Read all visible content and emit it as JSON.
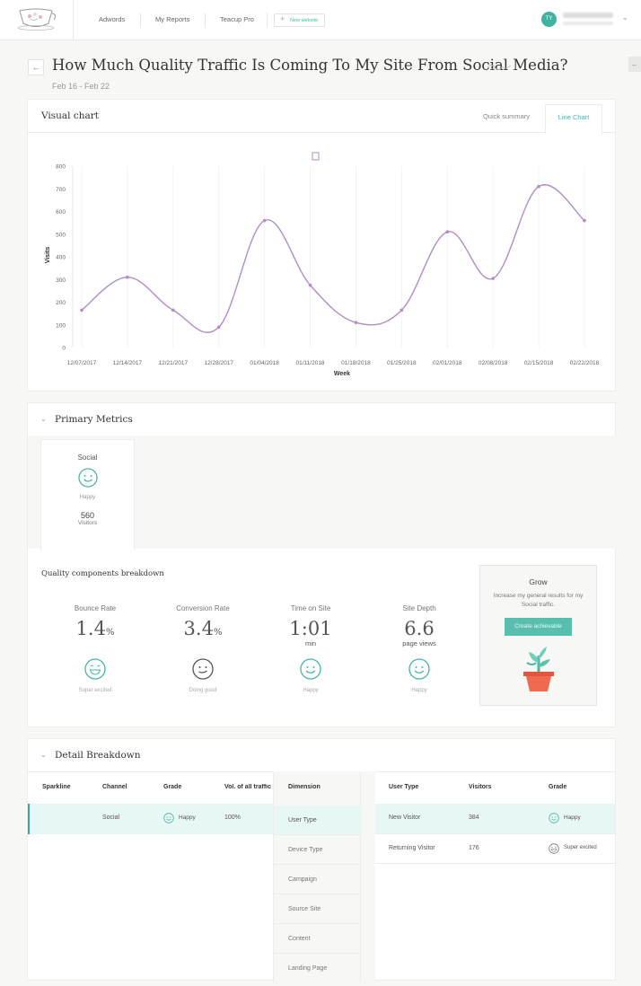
{
  "nav": {
    "items": [
      "Adwords",
      "My Reports",
      "Teacup Pro"
    ],
    "new_website": "New website",
    "avatar_initials": "TY"
  },
  "page": {
    "title": "How Much Quality Traffic Is Coming To My Site From Social Media?",
    "date_range": "Feb 16 - Feb 22"
  },
  "visual_chart": {
    "title": "Visual chart",
    "tabs": [
      "Quick summary",
      "Line Chart"
    ],
    "active_tab": "Line Chart"
  },
  "chart_data": {
    "type": "line",
    "xlabel": "Week",
    "ylabel": "Visits",
    "ylim": [
      0,
      800
    ],
    "yticks": [
      0,
      100,
      200,
      300,
      400,
      500,
      600,
      700,
      800
    ],
    "categories": [
      "12/07/2017",
      "12/14/2017",
      "12/21/2017",
      "12/28/2017",
      "01/04/2018",
      "01/11/2018",
      "01/18/2018",
      "01/25/2018",
      "02/01/2018",
      "02/08/2018",
      "02/15/2018",
      "02/22/2018"
    ],
    "series": [
      {
        "values": [
          165,
          310,
          165,
          90,
          560,
          275,
          110,
          165,
          510,
          305,
          710,
          560
        ],
        "color": "#b48cc8"
      }
    ],
    "grid": "vertical"
  },
  "primary_metrics": {
    "title": "Primary Metrics",
    "tile": {
      "label": "Social",
      "mood": "Happy",
      "value": "560",
      "unit": "Visitors"
    }
  },
  "quality": {
    "title": "Quality components breakdown",
    "metrics": [
      {
        "label": "Bounce Rate",
        "value": "1.4",
        "unit": "%",
        "sub": "",
        "mood": "Super excited"
      },
      {
        "label": "Conversion Rate",
        "value": "3.4",
        "unit": "%",
        "sub": "",
        "mood": "Doing good"
      },
      {
        "label": "Time on Site",
        "value": "1:01",
        "unit": "",
        "sub": "min",
        "mood": "Happy"
      },
      {
        "label": "Site Depth",
        "value": "6.6",
        "unit": "",
        "sub": "page views",
        "mood": "Happy"
      }
    ],
    "grow": {
      "title": "Grow",
      "desc": "Increase my general results for my Social traffic.",
      "button": "Create achievable"
    }
  },
  "detail": {
    "title": "Detail Breakdown",
    "left_headers": [
      "Sparkline",
      "Channel",
      "Grade",
      "Vol. of all traffic"
    ],
    "left_rows": [
      {
        "channel": "Social",
        "grade": "Happy",
        "volume": "100%"
      }
    ],
    "dimension_header": "Dimension",
    "dimensions": [
      "User Type",
      "Device Type",
      "Campaign",
      "Source Site",
      "Content",
      "Landing Page"
    ],
    "right_headers": [
      "User Type",
      "Visitors",
      "Grade"
    ],
    "right_rows": [
      {
        "user_type": "New Visitor",
        "visitors": "384",
        "grade": "Happy"
      },
      {
        "user_type": "Returning Visitor",
        "visitors": "176",
        "grade": "Super excited"
      }
    ]
  },
  "colors": {
    "accent": "#4ab5a8",
    "line": "#b48cc8",
    "selected_row": "#e6f7f4"
  }
}
